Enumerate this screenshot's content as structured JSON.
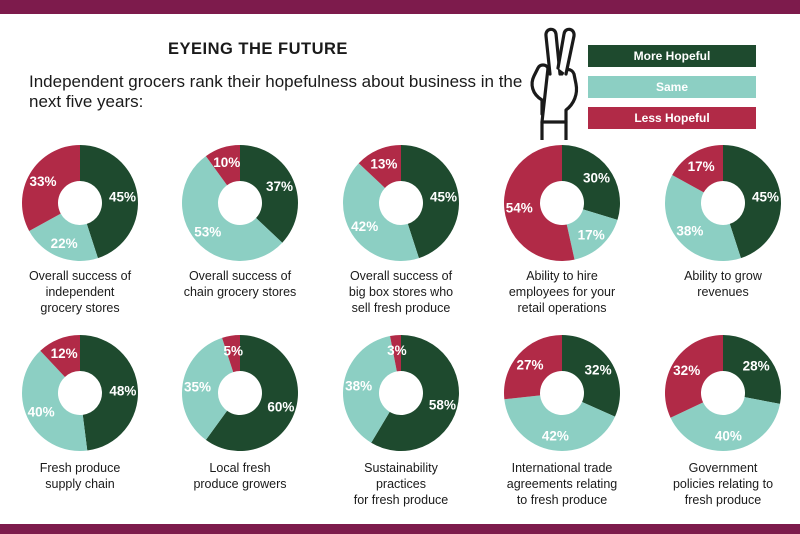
{
  "title": "EYEING THE FUTURE",
  "subtitle": "Independent grocers rank their hopefulness about business in the next five years:",
  "legend": [
    {
      "label": "More Hopeful",
      "color": "#1e4a2e"
    },
    {
      "label": "Same",
      "color": "#8ccfc3"
    },
    {
      "label": "Less Hopeful",
      "color": "#b12a47"
    }
  ],
  "chart_data": [
    {
      "type": "pie",
      "title": "Overall success of independent grocery stores",
      "categories": [
        "More Hopeful",
        "Same",
        "Less Hopeful"
      ],
      "values": [
        45,
        22,
        33
      ],
      "labels": [
        "45%",
        "22%",
        "33%"
      ]
    },
    {
      "type": "pie",
      "title": "Overall success of chain grocery stores",
      "categories": [
        "More Hopeful",
        "Same",
        "Less Hopeful"
      ],
      "values": [
        37,
        53,
        10
      ],
      "labels": [
        "37%",
        "53%",
        "10%"
      ]
    },
    {
      "type": "pie",
      "title": "Overall success of big box stores who sell fresh produce",
      "categories": [
        "More Hopeful",
        "Same",
        "Less Hopeful"
      ],
      "values": [
        45,
        42,
        13
      ],
      "labels": [
        "45%",
        "42%",
        "13%"
      ]
    },
    {
      "type": "pie",
      "title": "Ability to hire employees for your retail operations",
      "categories": [
        "More Hopeful",
        "Same",
        "Less Hopeful"
      ],
      "values": [
        30,
        17,
        54
      ],
      "labels": [
        "30%",
        "17%",
        "54%"
      ]
    },
    {
      "type": "pie",
      "title": "Ability to grow revenues",
      "categories": [
        "More Hopeful",
        "Same",
        "Less Hopeful"
      ],
      "values": [
        45,
        38,
        17
      ],
      "labels": [
        "45%",
        "38%",
        "17%"
      ]
    },
    {
      "type": "pie",
      "title": "Fresh produce supply chain",
      "categories": [
        "More Hopeful",
        "Same",
        "Less Hopeful"
      ],
      "values": [
        48,
        40,
        12
      ],
      "labels": [
        "48%",
        "40%",
        "12%"
      ]
    },
    {
      "type": "pie",
      "title": "Local fresh produce growers",
      "categories": [
        "More Hopeful",
        "Same",
        "Less Hopeful"
      ],
      "values": [
        60,
        35,
        5
      ],
      "labels": [
        "60%",
        "35%",
        "5%"
      ]
    },
    {
      "type": "pie",
      "title": "Sustainability practices for fresh produce",
      "categories": [
        "More Hopeful",
        "Same",
        "Less Hopeful"
      ],
      "values": [
        58,
        38,
        3
      ],
      "labels": [
        "58%",
        "38%",
        "3%"
      ]
    },
    {
      "type": "pie",
      "title": "International trade agreements relating to fresh produce",
      "categories": [
        "More Hopeful",
        "Same",
        "Less Hopeful"
      ],
      "values": [
        32,
        42,
        27
      ],
      "labels": [
        "32%",
        "42%",
        "27%"
      ]
    },
    {
      "type": "pie",
      "title": "Government policies relating to fresh produce",
      "categories": [
        "More Hopeful",
        "Same",
        "Less Hopeful"
      ],
      "values": [
        28,
        40,
        32
      ],
      "labels": [
        "28%",
        "40%",
        "32%"
      ]
    }
  ],
  "captions": [
    [
      "Overall success of",
      "independent",
      "grocery stores"
    ],
    [
      "Overall success of",
      "chain grocery stores"
    ],
    [
      "Overall success of",
      "big box stores who",
      "sell fresh produce"
    ],
    [
      "Ability to hire",
      "employees for your",
      "retail operations"
    ],
    [
      "Ability to grow",
      "revenues"
    ],
    [
      "Fresh produce",
      "supply chain"
    ],
    [
      "Local fresh",
      "produce growers"
    ],
    [
      "Sustainability",
      "practices",
      "for fresh produce"
    ],
    [
      "International trade",
      "agreements relating",
      "to fresh produce"
    ],
    [
      "Government",
      "policies relating to",
      "fresh produce"
    ]
  ]
}
